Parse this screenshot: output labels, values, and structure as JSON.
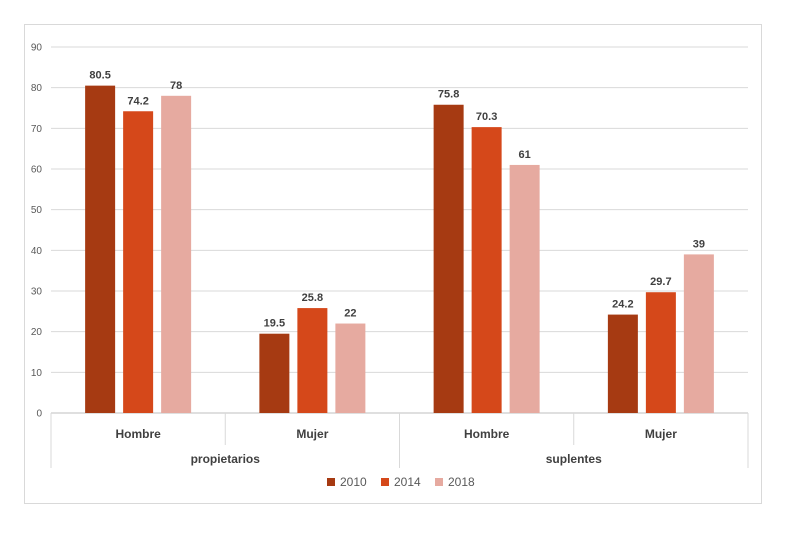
{
  "chart_data": {
    "type": "bar",
    "groups": [
      {
        "label": "propietarios",
        "categories": [
          "Hombre",
          "Mujer"
        ]
      },
      {
        "label": "suplentes",
        "categories": [
          "Hombre",
          "Mujer"
        ]
      }
    ],
    "categories": [
      "Hombre",
      "Mujer",
      "Hombre",
      "Mujer"
    ],
    "series": [
      {
        "name": "2010",
        "color": "#a63a12",
        "values": [
          80.5,
          19.5,
          75.8,
          24.2
        ]
      },
      {
        "name": "2014",
        "color": "#d5481a",
        "values": [
          74.2,
          25.8,
          70.3,
          29.7
        ]
      },
      {
        "name": "2018",
        "color": "#e6aaa0",
        "values": [
          78,
          22,
          61,
          39
        ]
      }
    ],
    "ylim": [
      0,
      90
    ],
    "yticks": [
      0,
      10,
      20,
      30,
      40,
      50,
      60,
      70,
      80,
      90
    ],
    "grid": true,
    "legend": "bottom"
  }
}
